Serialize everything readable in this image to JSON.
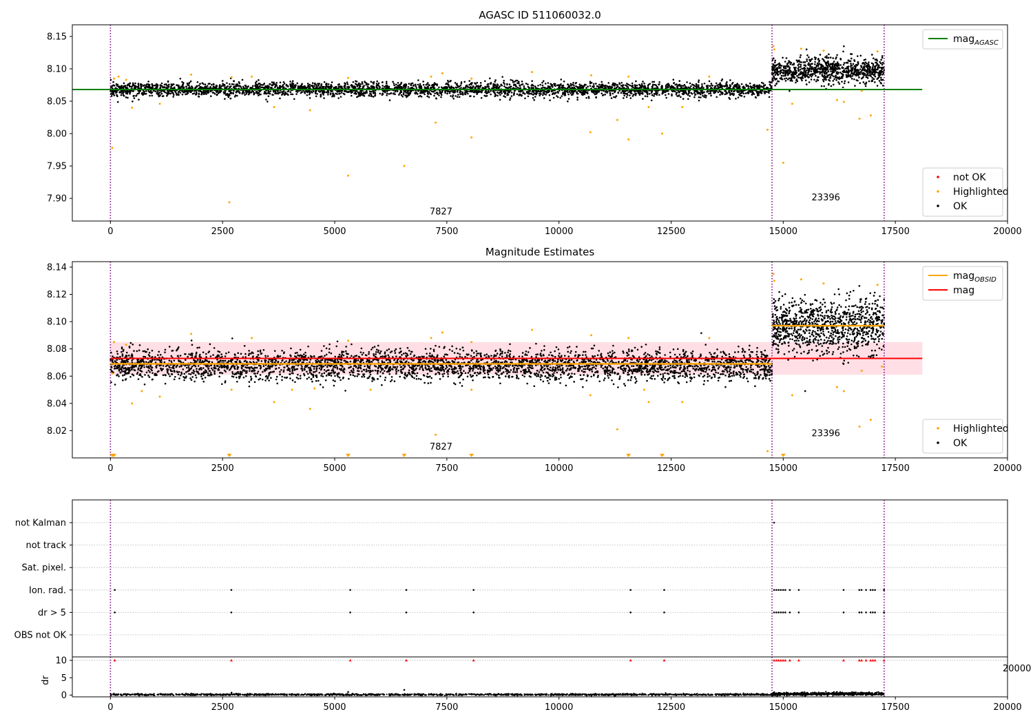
{
  "chart_data": [
    {
      "type": "scatter",
      "title": "AGASC ID 511060032.0",
      "xlim": [
        -850,
        20000
      ],
      "ylim": [
        7.865,
        8.168
      ],
      "xticks": [
        0,
        2500,
        5000,
        7500,
        10000,
        12500,
        15000,
        17500,
        20000
      ],
      "yticks": [
        7.9,
        7.95,
        8.0,
        8.05,
        8.1,
        8.15
      ],
      "vlines": [
        0,
        14750,
        17250
      ],
      "obsid_labels": [
        {
          "text": "7827",
          "x": 7370,
          "y": 7.875
        },
        {
          "text": "23396",
          "x": 15950,
          "y": 7.897
        }
      ],
      "series": [
        {
          "name": "mag_AGASC",
          "kind": "line",
          "color": "#008000",
          "x": [
            -850,
            18100
          ],
          "y": [
            8.068,
            8.068
          ]
        },
        {
          "name": "not OK",
          "kind": "scatter",
          "color": "#ff0000",
          "x": [],
          "y": []
        },
        {
          "name": "Highlighted",
          "kind": "scatter",
          "color": "#ffa500",
          "x": [
            40,
            80,
            180,
            350,
            480,
            1100,
            1800,
            2650,
            2700,
            3150,
            3650,
            4450,
            5300,
            5300,
            6550,
            7150,
            7250,
            7400,
            8050,
            8050,
            9400,
            10700,
            10720,
            11300,
            11550,
            11550,
            12000,
            12300,
            12750,
            13350,
            14650,
            14780,
            14800,
            15000,
            15200,
            15400,
            15900,
            16200,
            16350,
            16700,
            16750,
            16950,
            17100
          ],
          "y": [
            7.978,
            8.085,
            8.088,
            8.083,
            8.04,
            8.046,
            8.091,
            7.894,
            8.087,
            8.088,
            8.041,
            8.036,
            7.935,
            8.086,
            7.95,
            8.088,
            8.017,
            8.093,
            7.994,
            8.085,
            8.095,
            8.002,
            8.09,
            8.021,
            7.991,
            8.088,
            8.041,
            8.0,
            8.041,
            8.088,
            8.006,
            8.135,
            8.13,
            7.955,
            8.046,
            8.131,
            8.128,
            8.052,
            8.049,
            8.023,
            8.066,
            8.028,
            8.127
          ]
        },
        {
          "name": "OK",
          "kind": "scatter",
          "color": "#000000",
          "bands": [
            {
              "x0": 0,
              "x1": 14750,
              "n": 3400,
              "center": 8.068,
              "sd": 0.0055
            },
            {
              "x0": 14750,
              "x1": 17250,
              "n": 900,
              "center": 8.097,
              "sd": 0.01
            }
          ]
        }
      ],
      "legends": [
        {
          "loc": "upper right",
          "entries": [
            {
              "label": "mag",
              "sub": "AGASC",
              "color": "#008000",
              "marker": "line"
            }
          ]
        },
        {
          "loc": "lower right",
          "entries": [
            {
              "label": "not OK",
              "color": "#ff0000",
              "marker": "dot"
            },
            {
              "label": "Highlighted",
              "color": "#ffa500",
              "marker": "dot"
            },
            {
              "label": "OK",
              "color": "#000000",
              "marker": "dot"
            }
          ]
        }
      ]
    },
    {
      "type": "scatter",
      "title": "Magnitude Estimates",
      "xlim": [
        -850,
        20000
      ],
      "ylim": [
        8.0,
        8.144
      ],
      "xticks": [
        0,
        2500,
        5000,
        7500,
        10000,
        12500,
        15000,
        17500,
        20000
      ],
      "yticks": [
        8.02,
        8.04,
        8.06,
        8.08,
        8.1,
        8.12,
        8.14
      ],
      "vlines": [
        0,
        14750,
        17250
      ],
      "obsid_labels": [
        {
          "text": "7827",
          "x": 7370,
          "y": 8.006
        },
        {
          "text": "23396",
          "x": 15950,
          "y": 8.016
        }
      ],
      "shaded_band": {
        "x": [
          0,
          18100
        ],
        "y": [
          8.061,
          8.085
        ],
        "color": "#ffc0cb"
      },
      "series": [
        {
          "name": "mag_OBSID",
          "kind": "line",
          "color": "#ffa500",
          "segments": [
            {
              "x": [
                0,
                14750
              ],
              "y": 8.069
            },
            {
              "x": [
                14750,
                17250
              ],
              "y": 8.097
            }
          ]
        },
        {
          "name": "mag",
          "kind": "line",
          "color": "#ff0000",
          "x": [
            0,
            18100
          ],
          "y": [
            8.073,
            8.073
          ]
        },
        {
          "name": "Highlighted",
          "kind": "scatter",
          "color": "#ffa500",
          "x": [
            40,
            80,
            350,
            480,
            700,
            1100,
            1800,
            2700,
            3150,
            3650,
            4050,
            4450,
            4550,
            5300,
            5800,
            7150,
            7250,
            7400,
            8050,
            8050,
            9400,
            10700,
            10720,
            11300,
            11550,
            11900,
            12000,
            12750,
            13350,
            14650,
            14780,
            14800,
            15200,
            15400,
            15900,
            16200,
            16350,
            16700,
            16750,
            16950,
            17100,
            17200
          ],
          "y": [
            8.062,
            8.085,
            8.083,
            8.04,
            8.049,
            8.045,
            8.091,
            8.05,
            8.088,
            8.041,
            8.05,
            8.036,
            8.051,
            8.086,
            8.05,
            8.088,
            8.017,
            8.092,
            8.05,
            8.085,
            8.094,
            8.046,
            8.09,
            8.021,
            8.088,
            8.05,
            8.041,
            8.041,
            8.088,
            8.005,
            8.135,
            8.13,
            8.046,
            8.131,
            8.128,
            8.052,
            8.049,
            8.023,
            8.064,
            8.028,
            8.127,
            8.067
          ]
        },
        {
          "name": "out-of-range",
          "kind": "triangle",
          "color": "#ffa500",
          "x": [
            40,
            80,
            2650,
            5300,
            6550,
            8050,
            11550,
            12300,
            15000
          ],
          "y": [
            8.0,
            8.0,
            8.0,
            8.0,
            8.0,
            8.0,
            8.0,
            8.0,
            8.0
          ]
        },
        {
          "name": "OK",
          "kind": "scatter",
          "color": "#000000",
          "bands": [
            {
              "x0": 0,
              "x1": 14750,
              "n": 3600,
              "center": 8.068,
              "sd": 0.0055
            },
            {
              "x0": 14750,
              "x1": 17250,
              "n": 1000,
              "center": 8.097,
              "sd": 0.01
            }
          ]
        }
      ],
      "legends": [
        {
          "loc": "upper right",
          "entries": [
            {
              "label": "mag",
              "sub": "OBSID",
              "color": "#ffa500",
              "marker": "line"
            },
            {
              "label": "mag",
              "color": "#ff0000",
              "marker": "line"
            }
          ]
        },
        {
          "loc": "lower right",
          "entries": [
            {
              "label": "Highlighted",
              "color": "#ffa500",
              "marker": "dot"
            },
            {
              "label": "OK",
              "color": "#000000",
              "marker": "dot"
            }
          ]
        }
      ]
    },
    {
      "type": "scatter",
      "title": "",
      "xlim": [
        -850,
        20000
      ],
      "categories": [
        "not Kalman",
        "not track",
        "Sat. pixel.",
        "Ion. rad.",
        "dr > 5",
        "OBS not OK"
      ],
      "vlines": [
        0,
        14750,
        17250
      ],
      "flag_points": {
        "Ion. rad.": [
          50,
          2650,
          5300,
          6550,
          8050,
          11550,
          12300,
          14750,
          14800,
          14850,
          14900,
          14950,
          15000,
          15100,
          15300,
          16300,
          16650,
          16700,
          16800,
          16900,
          16950,
          17000,
          17200
        ],
        "dr > 5": [
          50,
          2650,
          5300,
          6550,
          8050,
          11550,
          12300,
          14750,
          14800,
          14850,
          14900,
          14950,
          15000,
          15100,
          15300,
          16300,
          16650,
          16700,
          16800,
          16900,
          16950,
          17000,
          17200
        ],
        "not Kalman": [
          14750
        ]
      },
      "flag_color": "#000000",
      "stray_tick": "20000"
    },
    {
      "type": "scatter",
      "title": "",
      "xlim": [
        -850,
        20000
      ],
      "ylim": [
        -0.5,
        11
      ],
      "ylabel": "dr",
      "xticks": [
        0,
        2500,
        5000,
        7500,
        10000,
        12500,
        15000,
        17500,
        20000
      ],
      "yticks": [
        0,
        5,
        10
      ],
      "vlines": [
        0,
        14750,
        17250
      ],
      "capped": {
        "color": "#ff0000",
        "y": 10,
        "x": [
          50,
          2650,
          5300,
          6550,
          8050,
          11550,
          12300,
          14750,
          14800,
          14850,
          14900,
          14950,
          15000,
          15100,
          15300,
          16300,
          16650,
          16700,
          16800,
          16900,
          16950,
          17000,
          17200
        ]
      },
      "series": [
        {
          "name": "dr",
          "kind": "scatter",
          "color": "#000000",
          "bands": [
            {
              "x0": 0,
              "x1": 14750,
              "n": 1800,
              "center": 0.15,
              "sd": 0.12
            },
            {
              "x0": 14750,
              "x1": 17250,
              "n": 700,
              "center": 0.35,
              "sd": 0.2
            }
          ],
          "extra": {
            "x": [
              6550,
              5300,
              2700
            ],
            "y": [
              1.5,
              0.9,
              0.7
            ]
          }
        }
      ]
    }
  ]
}
